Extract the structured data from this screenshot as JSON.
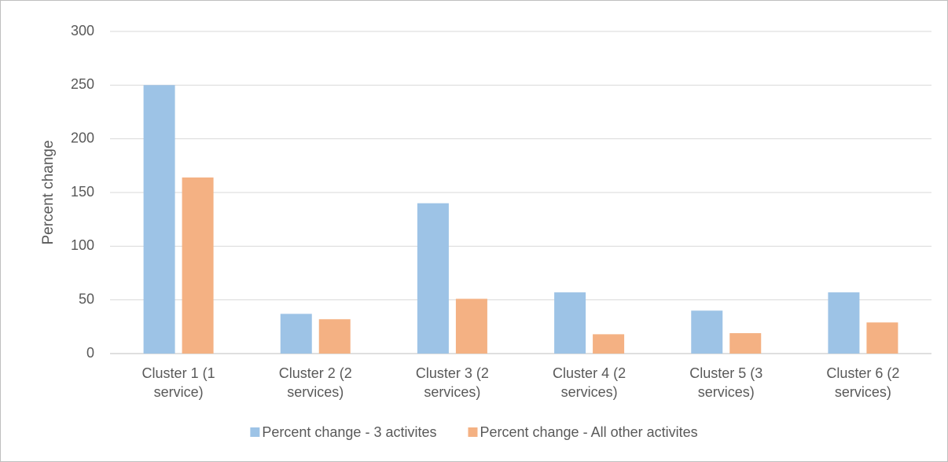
{
  "chart_data": {
    "type": "bar",
    "y_label": "Percent change",
    "categories": [
      "Cluster 1 (1 service)",
      "Cluster 2 (2 services)",
      "Cluster 3 (2 services)",
      "Cluster 4 (2 services)",
      "Cluster 5 (3 services)",
      "Cluster 6 (2 services)"
    ],
    "series": [
      {
        "name": "Percent change - 3 activites",
        "color": "#9dc3e6",
        "values": [
          250,
          37,
          140,
          57,
          40,
          57
        ]
      },
      {
        "name": "Percent change - All other activites",
        "color": "#f4b183",
        "values": [
          164,
          32,
          51,
          18,
          19,
          29
        ]
      }
    ],
    "ylim": [
      0,
      300
    ],
    "yticks": [
      0,
      50,
      100,
      150,
      200,
      250,
      300
    ],
    "grid": true,
    "legend": "bottom"
  }
}
